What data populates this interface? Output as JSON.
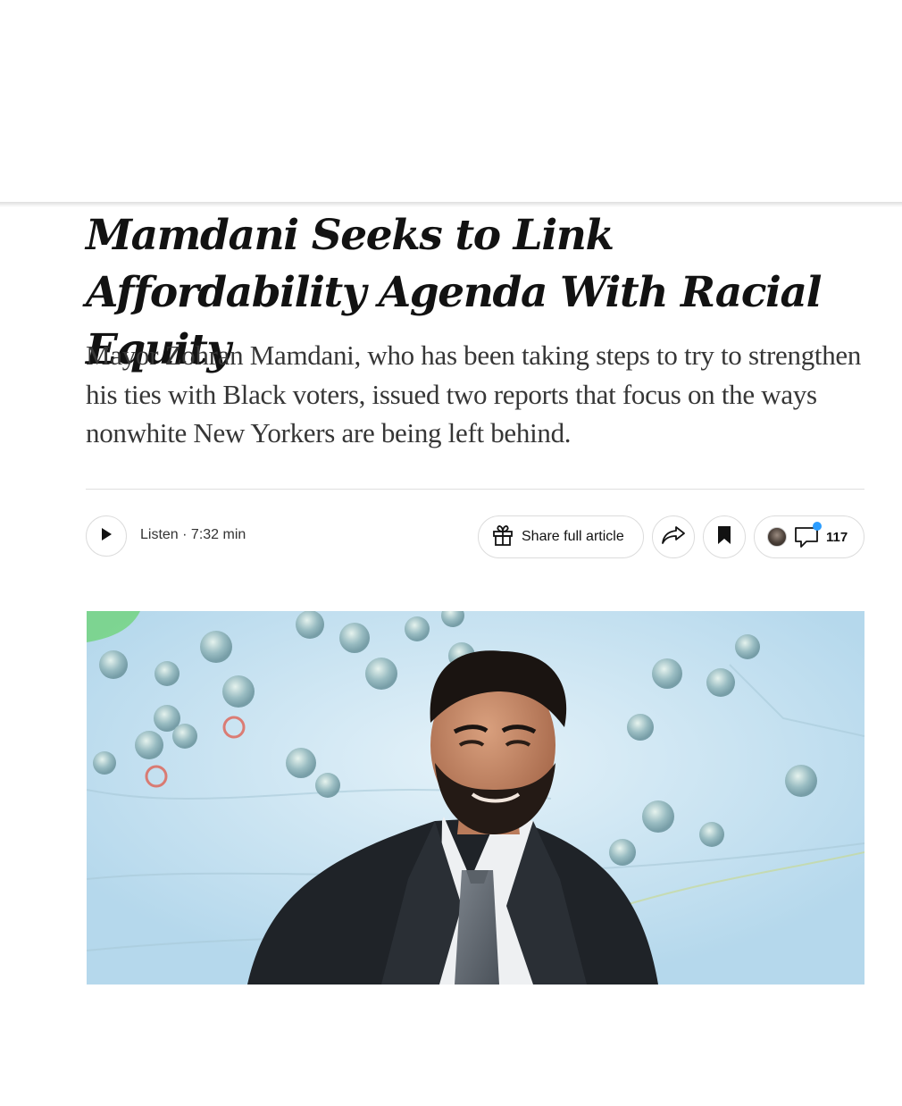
{
  "article": {
    "headline": "Mamdani Seeks to Link Affordability Agenda With Racial Equity",
    "summary": "Mayor Zohran Mamdani, who has been taking steps to try to strengthen his ties with Black voters, issued two reports that focus on the ways nonwhite New Yorkers are being left behind."
  },
  "toolbar": {
    "listen_label": "Listen · 7:32 min",
    "share_full_article_label": "Share full article",
    "comment_count": "117",
    "icons": {
      "play": "play-icon",
      "gift": "gift-icon",
      "share": "share-arrow-icon",
      "save": "bookmark-icon",
      "comments": "comment-bubble-icon"
    },
    "notification_dot_color": "#2b9dff"
  },
  "hero_image": {
    "subject": "man in dark suit and tie smiling in front of a projected map with location pins"
  }
}
